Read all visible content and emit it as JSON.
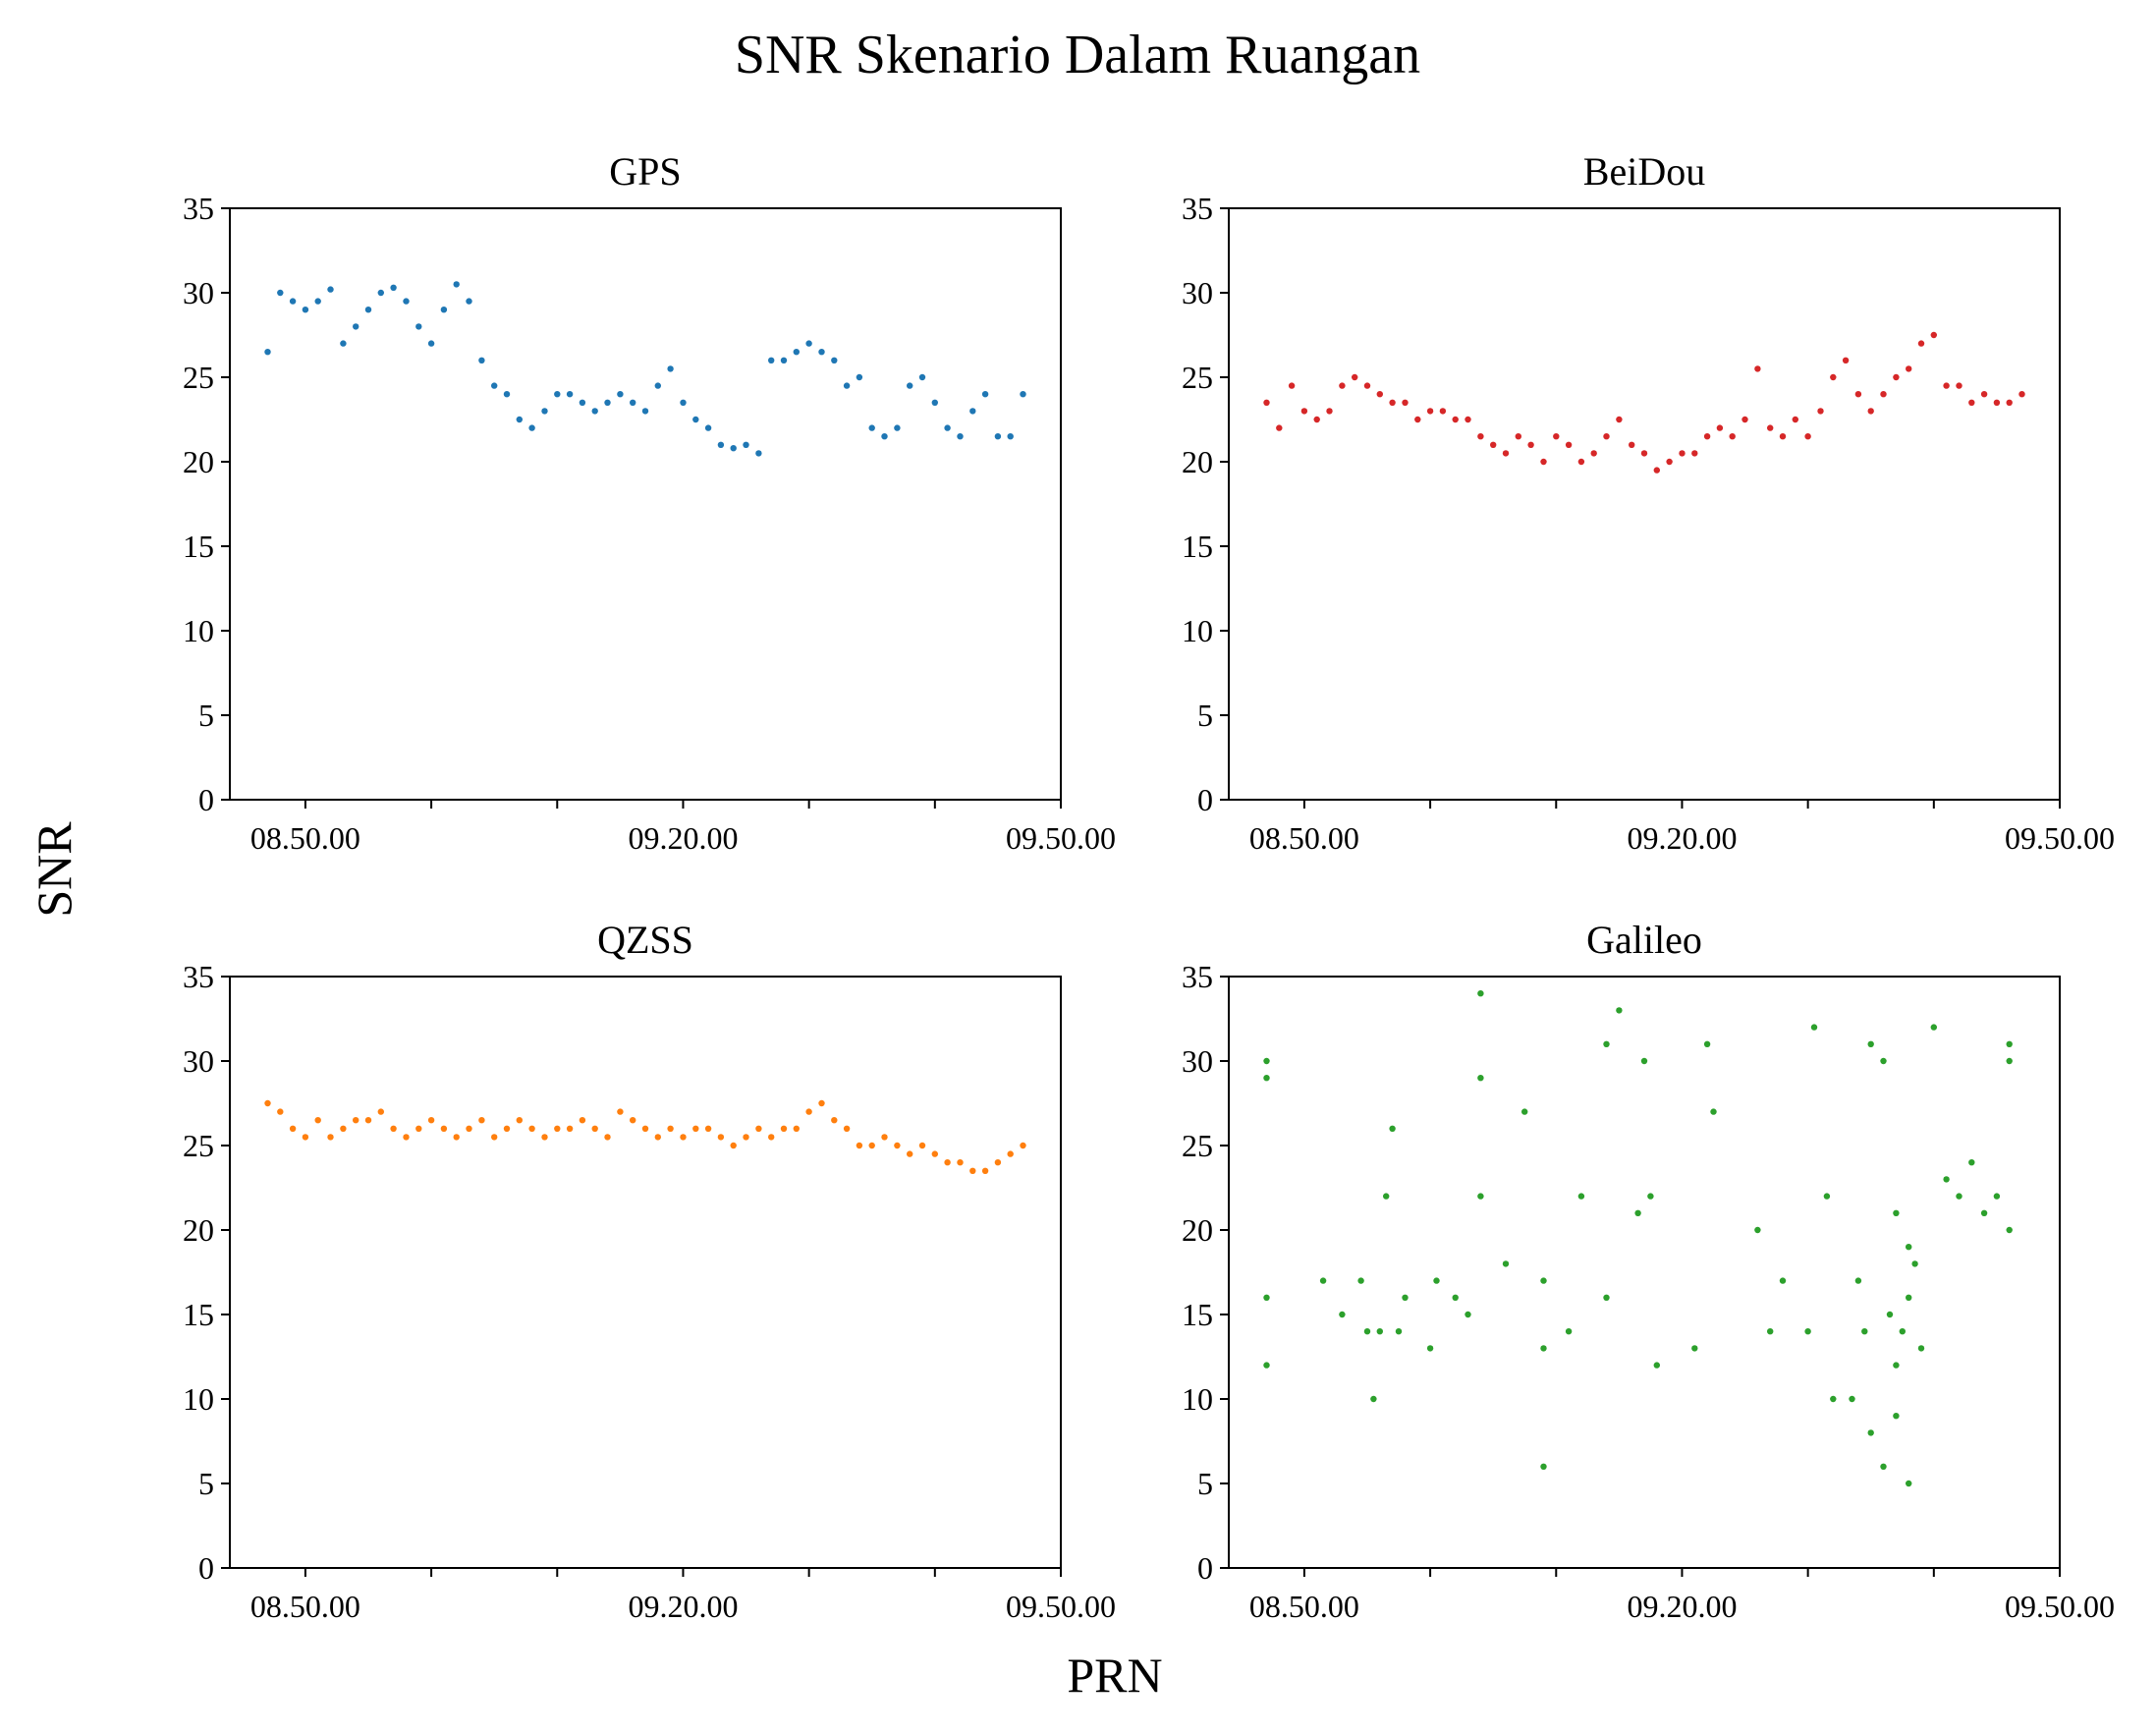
{
  "figure": {
    "title": "SNR Skenario Dalam Ruangan",
    "ylabel": "SNR",
    "xlabel": "PRN"
  },
  "chart_data": [
    {
      "type": "scatter",
      "title": "GPS",
      "color": "#1f77b4",
      "ylim": [
        0,
        35
      ],
      "yticks": [
        0,
        5,
        10,
        15,
        20,
        25,
        30,
        35
      ],
      "xtick_labels": [
        "08.50.00",
        "09.20.00",
        "09.50.00"
      ],
      "x_unit": "minutes",
      "xlim": [
        -6,
        60
      ],
      "x": [
        -3,
        -2,
        -1,
        0,
        1,
        2,
        3,
        4,
        5,
        6,
        7,
        8,
        9,
        10,
        11,
        12,
        13,
        14,
        15,
        16,
        17,
        18,
        19,
        20,
        21,
        22,
        23,
        24,
        25,
        26,
        27,
        28,
        29,
        30,
        31,
        32,
        33,
        34,
        35,
        36,
        37,
        38,
        39,
        40,
        41,
        42,
        43,
        44,
        45,
        46,
        47,
        48,
        49,
        50,
        51,
        52,
        53,
        54,
        55,
        56,
        57
      ],
      "y": [
        26.5,
        30,
        29.5,
        29,
        29.5,
        30.2,
        27,
        28,
        29,
        30,
        30.3,
        29.5,
        28,
        27,
        29,
        30.5,
        29.5,
        26,
        24.5,
        24,
        22.5,
        22,
        23,
        24,
        24,
        23.5,
        23,
        23.5,
        24,
        23.5,
        23,
        24.5,
        25.5,
        23.5,
        22.5,
        22,
        21,
        20.8,
        21,
        20.5,
        26,
        26,
        26.5,
        27,
        26.5,
        26,
        24.5,
        25,
        22,
        21.5,
        22,
        24.5,
        25,
        23.5,
        22,
        21.5,
        23,
        24,
        21.5,
        21.5,
        24
      ]
    },
    {
      "type": "scatter",
      "title": "BeiDou",
      "color": "#d62728",
      "ylim": [
        0,
        35
      ],
      "yticks": [
        0,
        5,
        10,
        15,
        20,
        25,
        30,
        35
      ],
      "xtick_labels": [
        "08.50.00",
        "09.20.00",
        "09.50.00"
      ],
      "x_unit": "minutes",
      "xlim": [
        -6,
        60
      ],
      "x": [
        -3,
        -2,
        -1,
        0,
        1,
        2,
        3,
        4,
        5,
        6,
        7,
        8,
        9,
        10,
        11,
        12,
        13,
        14,
        15,
        16,
        17,
        18,
        19,
        20,
        21,
        22,
        23,
        24,
        25,
        26,
        27,
        28,
        29,
        30,
        31,
        32,
        33,
        34,
        35,
        36,
        37,
        38,
        39,
        40,
        41,
        42,
        43,
        44,
        45,
        46,
        47,
        48,
        49,
        50,
        51,
        52,
        53,
        54,
        55,
        56,
        57
      ],
      "y": [
        23.5,
        22,
        24.5,
        23,
        22.5,
        23,
        24.5,
        25,
        24.5,
        24,
        23.5,
        23.5,
        22.5,
        23,
        23,
        22.5,
        22.5,
        21.5,
        21,
        20.5,
        21.5,
        21,
        20,
        21.5,
        21,
        20,
        20.5,
        21.5,
        22.5,
        21,
        20.5,
        19.5,
        20,
        20.5,
        20.5,
        21.5,
        22,
        21.5,
        22.5,
        25.5,
        22,
        21.5,
        22.5,
        21.5,
        23,
        25,
        26,
        24,
        23,
        24,
        25,
        25.5,
        27,
        27.5,
        24.5,
        24.5,
        23.5,
        24,
        23.5,
        23.5,
        24
      ]
    },
    {
      "type": "scatter",
      "title": "QZSS",
      "color": "#ff7f0e",
      "ylim": [
        0,
        35
      ],
      "yticks": [
        0,
        5,
        10,
        15,
        20,
        25,
        30,
        35
      ],
      "xtick_labels": [
        "08.50.00",
        "09.20.00",
        "09.50.00"
      ],
      "x_unit": "minutes",
      "xlim": [
        -6,
        60
      ],
      "x": [
        -3,
        -2,
        -1,
        0,
        1,
        2,
        3,
        4,
        5,
        6,
        7,
        8,
        9,
        10,
        11,
        12,
        13,
        14,
        15,
        16,
        17,
        18,
        19,
        20,
        21,
        22,
        23,
        24,
        25,
        26,
        27,
        28,
        29,
        30,
        31,
        32,
        33,
        34,
        35,
        36,
        37,
        38,
        39,
        40,
        41,
        42,
        43,
        44,
        45,
        46,
        47,
        48,
        49,
        50,
        51,
        52,
        53,
        54,
        55,
        56,
        57
      ],
      "y": [
        27.5,
        27,
        26,
        25.5,
        26.5,
        25.5,
        26,
        26.5,
        26.5,
        27,
        26,
        25.5,
        26,
        26.5,
        26,
        25.5,
        26,
        26.5,
        25.5,
        26,
        26.5,
        26,
        25.5,
        26,
        26,
        26.5,
        26,
        25.5,
        27,
        26.5,
        26,
        25.5,
        26,
        25.5,
        26,
        26,
        25.5,
        25,
        25.5,
        26,
        25.5,
        26,
        26,
        27,
        27.5,
        26.5,
        26,
        25,
        25,
        25.5,
        25,
        24.5,
        25,
        24.5,
        24,
        24,
        23.5,
        23.5,
        24,
        24.5,
        25
      ]
    },
    {
      "type": "scatter",
      "title": "Galileo",
      "color": "#2ca02c",
      "ylim": [
        0,
        35
      ],
      "yticks": [
        0,
        5,
        10,
        15,
        20,
        25,
        30,
        35
      ],
      "xtick_labels": [
        "08.50.00",
        "09.20.00",
        "09.50.00"
      ],
      "x_unit": "minutes",
      "xlim": [
        -6,
        60
      ],
      "x": [
        -3,
        -3,
        -3,
        -3,
        1.5,
        3,
        4.5,
        5,
        5.5,
        6,
        6.5,
        7,
        7.5,
        8,
        10,
        10.5,
        12,
        13,
        14,
        14,
        14,
        16,
        17.5,
        19,
        19,
        19,
        21,
        22,
        24,
        24,
        25,
        26.5,
        27,
        27.5,
        28,
        31,
        32,
        32.5,
        36,
        37,
        38,
        40,
        40.5,
        41.5,
        42,
        43.5,
        44,
        44.5,
        45,
        46,
        46.5,
        47,
        47.5,
        48,
        48.5,
        49,
        50,
        51,
        52,
        53,
        54,
        55,
        56,
        56,
        56,
        45,
        46,
        47,
        48,
        47,
        48
      ],
      "y": [
        30,
        29,
        16,
        12,
        17,
        15,
        17,
        14,
        10,
        14,
        22,
        26,
        14,
        16,
        13,
        17,
        16,
        15,
        22,
        34,
        29,
        18,
        27,
        6,
        17,
        13,
        14,
        22,
        16,
        31,
        33,
        21,
        30,
        22,
        12,
        13,
        31,
        27,
        20,
        14,
        17,
        14,
        32,
        22,
        10,
        10,
        17,
        14,
        8,
        6,
        15,
        9,
        14,
        5,
        18,
        13,
        32,
        23,
        22,
        24,
        21,
        22,
        31,
        30,
        20,
        31,
        30,
        21,
        16,
        12,
        19
      ]
    }
  ]
}
